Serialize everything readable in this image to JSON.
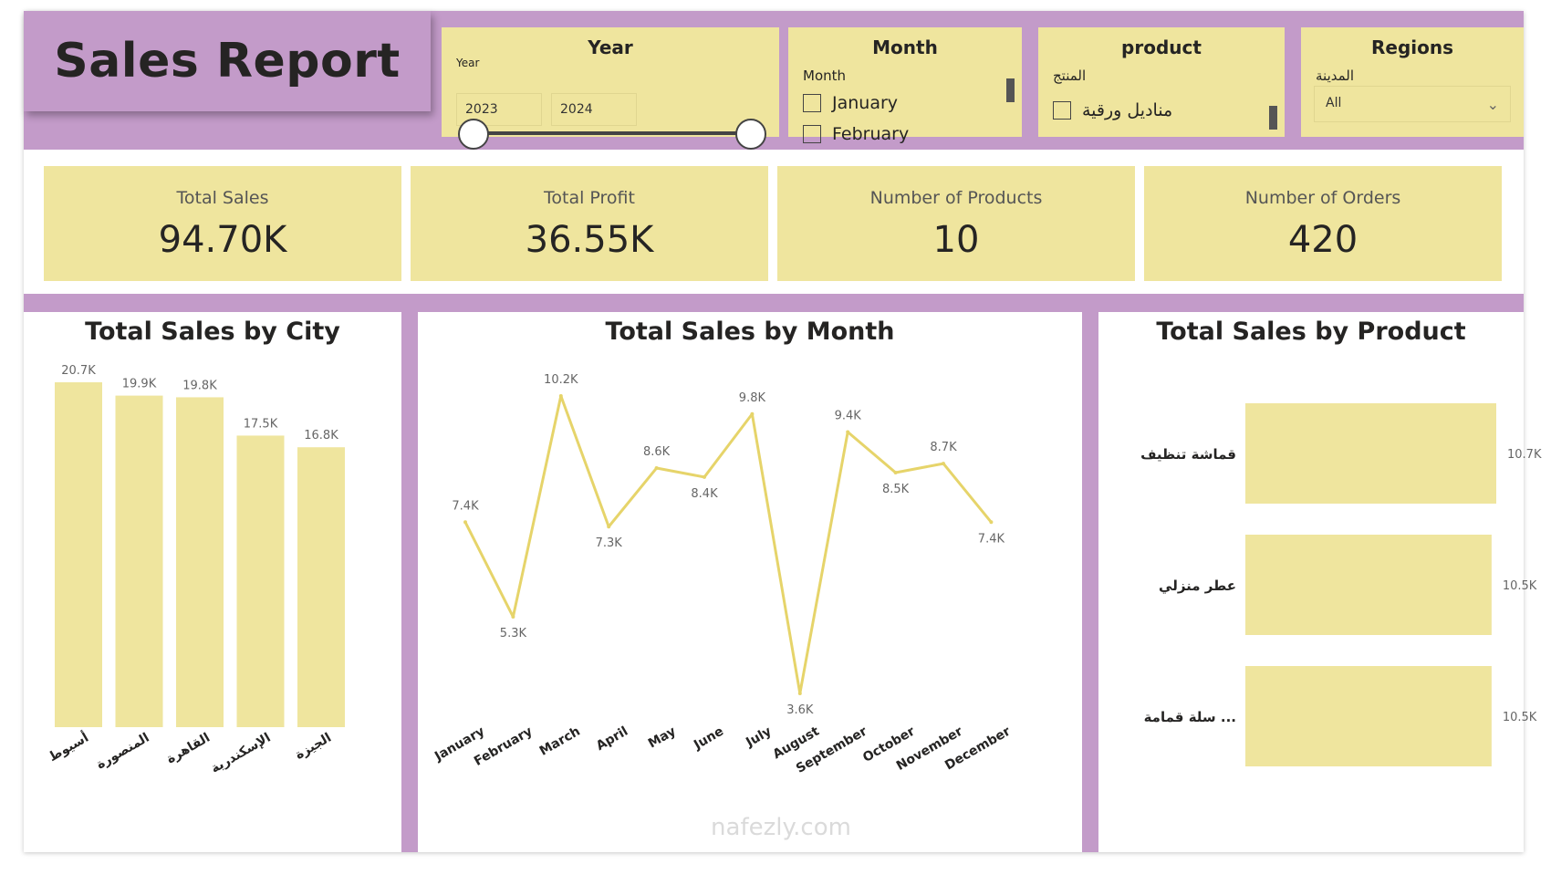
{
  "colors": {
    "accent": "#c39bc9",
    "card": "#efe59e",
    "line": "#e6d46a",
    "bar": "#efe59e",
    "text": "#252423"
  },
  "report": {
    "title": "Sales Report"
  },
  "slicers": {
    "year": {
      "title": "Year",
      "subtitle": "Year",
      "from": "2023",
      "to": "2024"
    },
    "month": {
      "title": "Month",
      "subtitle": "Month",
      "items": [
        "January",
        "February"
      ]
    },
    "product": {
      "title": "product",
      "subtitle": "المنتج",
      "items": [
        "مناديل ورقية"
      ]
    },
    "regions": {
      "title": "Regions",
      "subtitle": "المدينة",
      "selected": "All"
    }
  },
  "kpis": [
    {
      "label": "Total Sales",
      "value": "94.70K"
    },
    {
      "label": "Total Profit",
      "value": "36.55K"
    },
    {
      "label": "Number of Products",
      "value": "10"
    },
    {
      "label": "Number of Orders",
      "value": "420"
    }
  ],
  "chart_data": [
    {
      "type": "bar",
      "title": "Total Sales by City",
      "categories": [
        "أسيوط",
        "المنصورة",
        "القاهرة",
        "الإسكندرية",
        "الجيزة"
      ],
      "values": [
        20.7,
        19.9,
        19.8,
        17.5,
        16.8
      ],
      "labels": [
        "20.7K",
        "19.9K",
        "19.8K",
        "17.5K",
        "16.8K"
      ],
      "ylim": [
        0,
        20.7
      ],
      "unit": "K"
    },
    {
      "type": "line",
      "title": "Total Sales by Month",
      "categories": [
        "January",
        "February",
        "March",
        "April",
        "May",
        "June",
        "July",
        "August",
        "September",
        "October",
        "November",
        "December"
      ],
      "values": [
        7.4,
        5.3,
        10.2,
        7.3,
        8.6,
        8.4,
        9.8,
        3.6,
        9.4,
        8.5,
        8.7,
        7.4
      ],
      "labels": [
        "7.4K",
        "5.3K",
        "10.2K",
        "7.3K",
        "8.6K",
        "8.4K",
        "9.8K",
        "3.6K",
        "9.4K",
        "8.5K",
        "8.7K",
        "7.4K"
      ],
      "ylim": [
        3.6,
        10.2
      ],
      "unit": "K"
    },
    {
      "type": "bar",
      "orientation": "horizontal",
      "title": "Total Sales by Product",
      "categories": [
        "قماشة تنظيف",
        "عطر منزلي",
        "سلة قمامة ..."
      ],
      "values": [
        10.7,
        10.5,
        10.5
      ],
      "labels": [
        "10.7K",
        "10.5K",
        "10.5K"
      ],
      "unit": "K"
    }
  ],
  "watermark": {
    "text": "nafezly.com"
  }
}
